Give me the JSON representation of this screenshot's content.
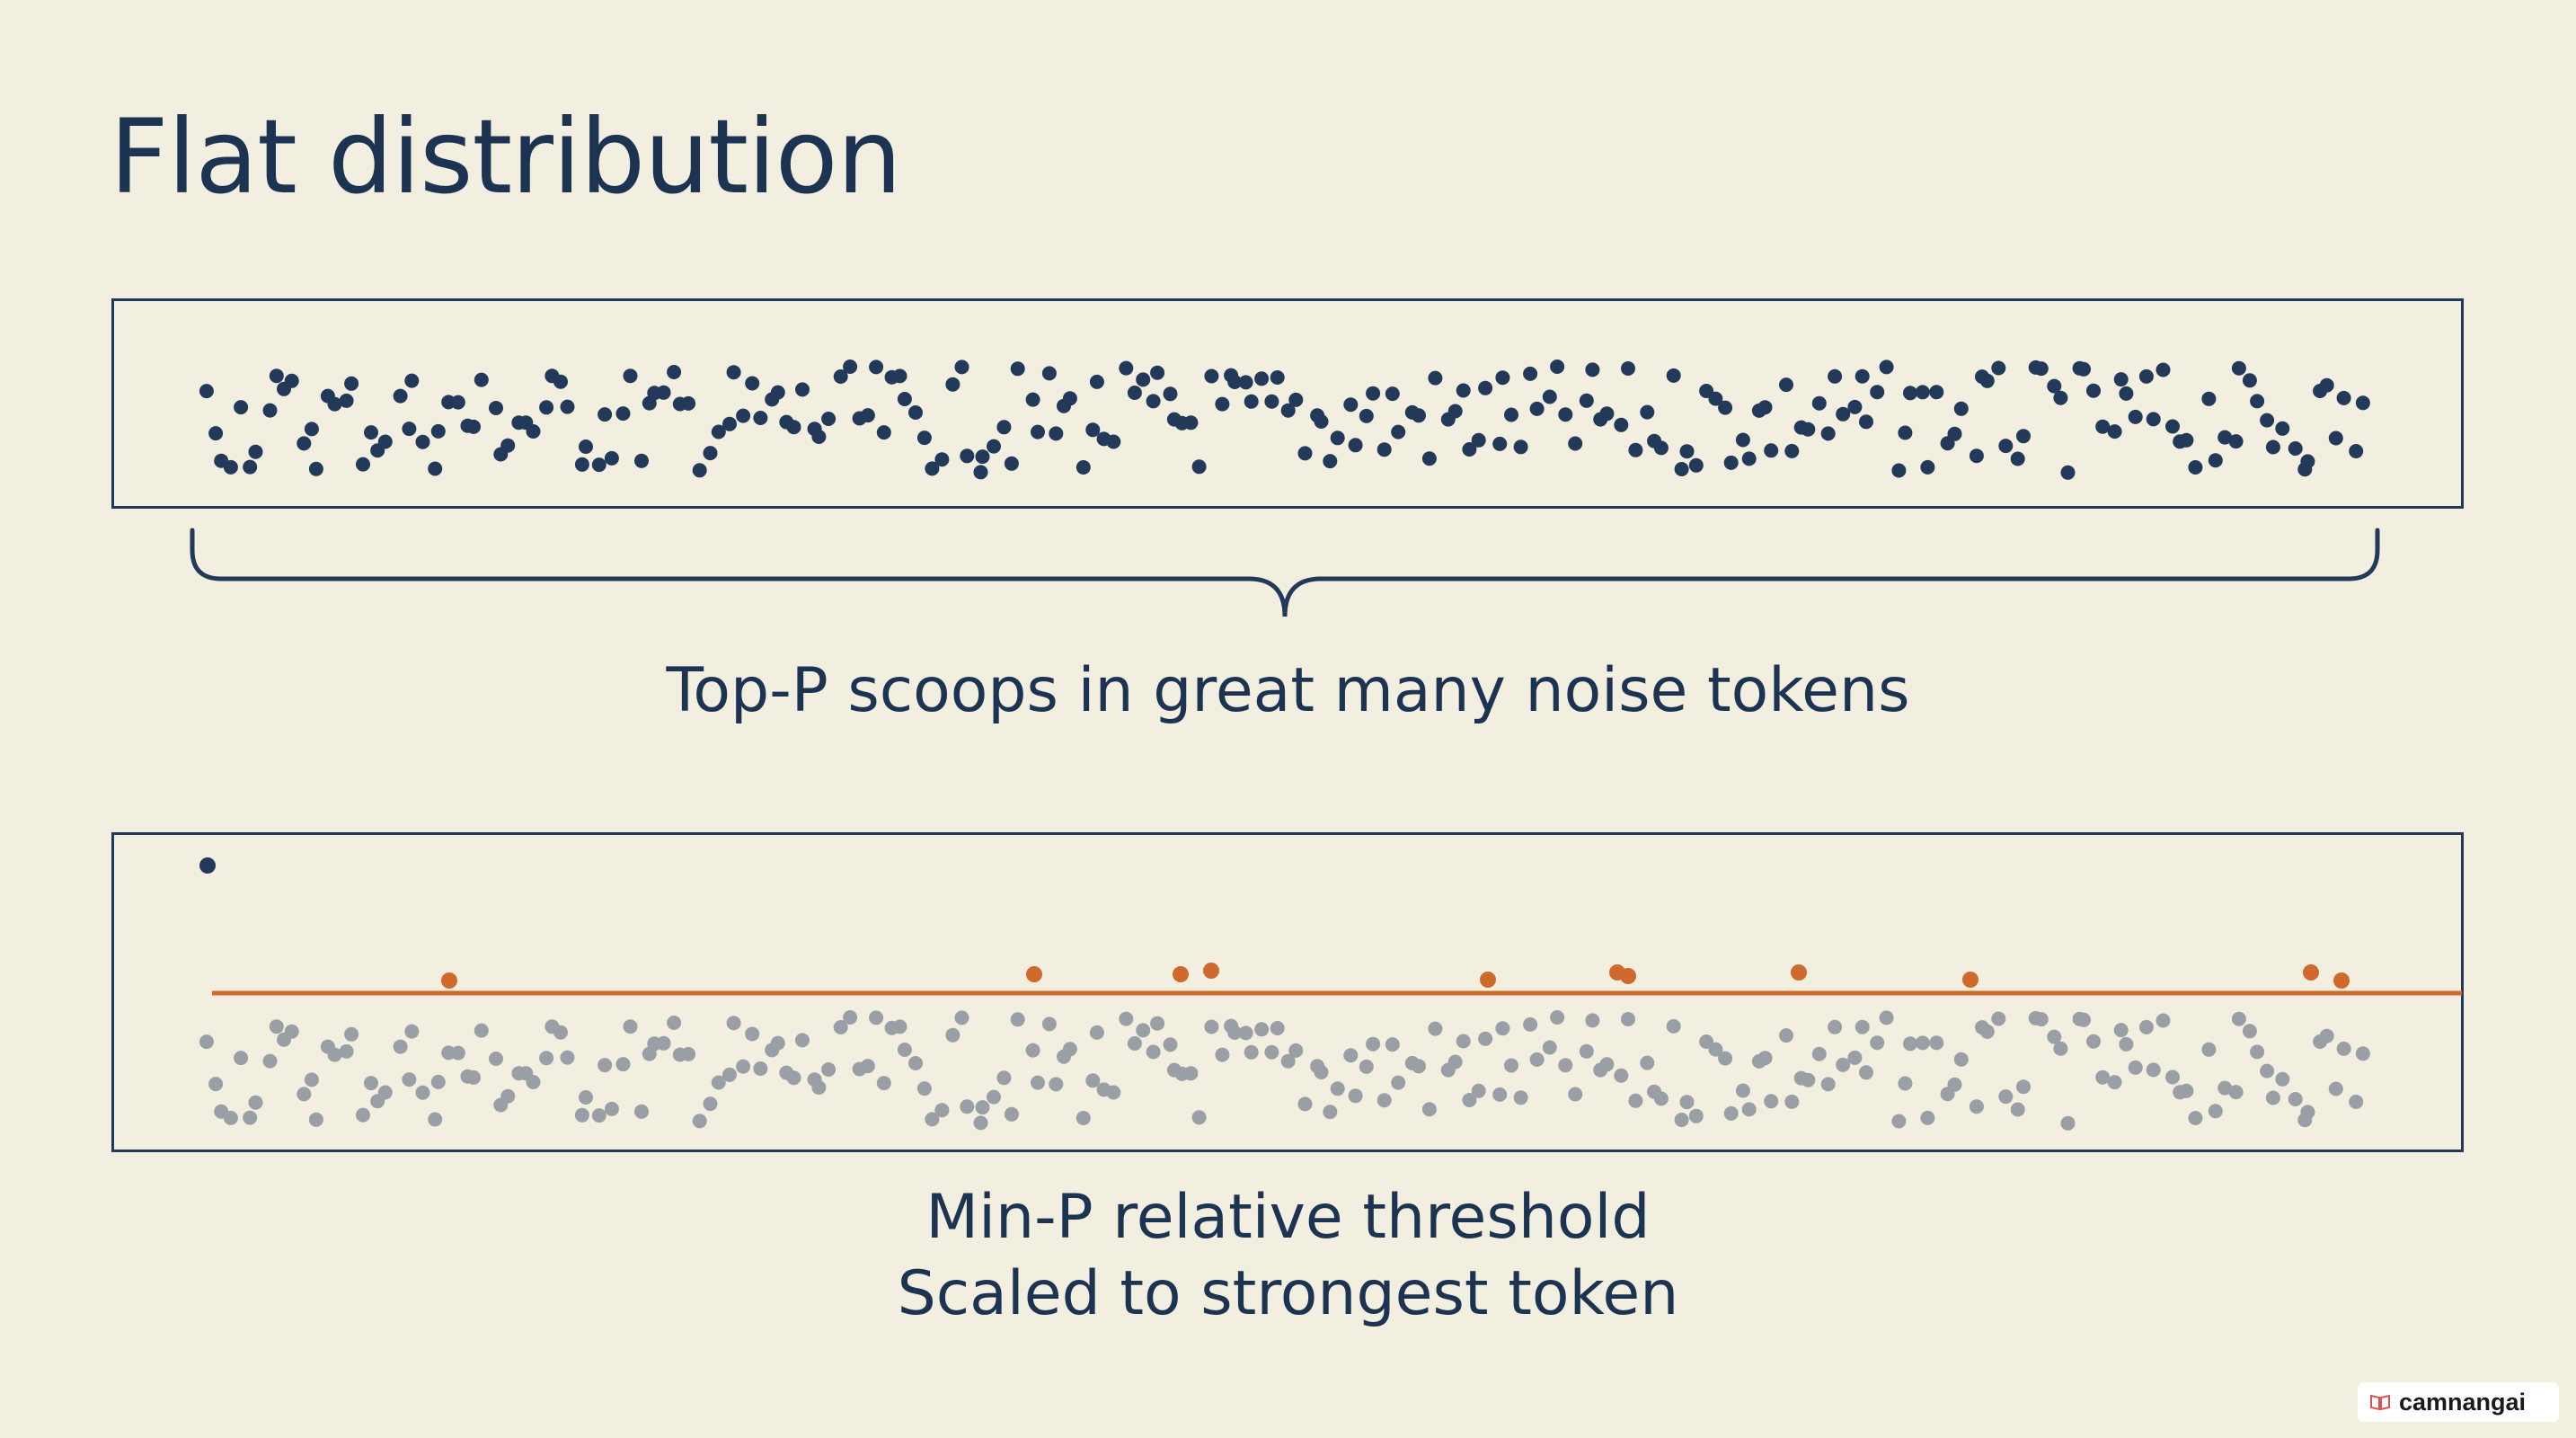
{
  "title": "Flat distribution",
  "top_caption": "Top-P scoops in great many noise tokens",
  "bottom_caption": {
    "line1": "Min-P relative threshold",
    "line2": "Scaled to strongest token"
  },
  "watermark": {
    "text": "camnangai",
    "icon": "book-icon"
  },
  "colors": {
    "background": "#f2efe0",
    "ink": "#1c3352",
    "noise_kept": "#22395a",
    "noise_filtered": "#9a9fa6",
    "threshold": "#cf6a2c"
  }
}
